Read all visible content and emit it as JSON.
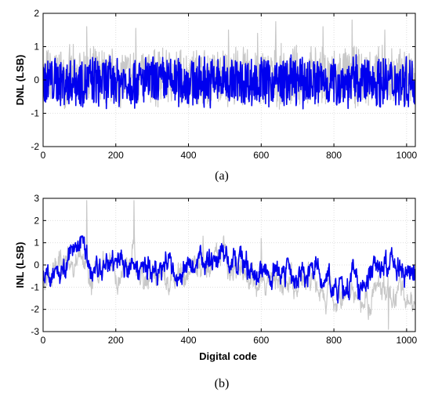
{
  "chart_data": [
    {
      "type": "line",
      "caption": "(a)",
      "title": "",
      "xlabel": "",
      "ylabel": "DNL (LSB)",
      "xlim": [
        0,
        1024
      ],
      "ylim": [
        -2,
        2
      ],
      "x_ticks": [
        0,
        200,
        400,
        600,
        800,
        1000
      ],
      "y_ticks": [
        -2,
        -1,
        0,
        1,
        2
      ],
      "grid": true,
      "legend": "none",
      "series": [
        {
          "color": "#c8c8c8",
          "n_points": 1024,
          "envelope": [
            -1.0,
            1.8
          ],
          "typical_range": [
            -0.9,
            1.1
          ],
          "peaks": [
            {
              "x": 120,
              "y": 1.6
            },
            {
              "x": 255,
              "y": 1.55
            },
            {
              "x": 510,
              "y": 1.5
            },
            {
              "x": 590,
              "y": 1.4
            },
            {
              "x": 640,
              "y": 1.75
            },
            {
              "x": 770,
              "y": 1.6
            },
            {
              "x": 850,
              "y": 1.8
            },
            {
              "x": 940,
              "y": 1.5
            }
          ]
        },
        {
          "color": "#0000ee",
          "n_points": 1024,
          "envelope": [
            -1.0,
            0.9
          ],
          "typical_range": [
            -0.9,
            0.8
          ],
          "peaks": []
        }
      ]
    },
    {
      "type": "line",
      "caption": "(b)",
      "title": "",
      "xlabel": "Digital code",
      "ylabel": "INL (LSB)",
      "xlim": [
        0,
        1024
      ],
      "ylim": [
        -3,
        3
      ],
      "x_ticks": [
        0,
        200,
        400,
        600,
        800,
        1000
      ],
      "y_ticks": [
        -3,
        -2,
        -1,
        0,
        1,
        2,
        3
      ],
      "grid": true,
      "legend": "none",
      "series": [
        {
          "color": "#c8c8c8",
          "n_points": 1024,
          "envelope": [
            -3.0,
            3.0
          ],
          "trend": [
            [
              0,
              -0.6
            ],
            [
              60,
              0.2
            ],
            [
              120,
              0.5
            ],
            [
              130,
              -0.6
            ],
            [
              250,
              0.2
            ],
            [
              260,
              -0.4
            ],
            [
              380,
              -0.5
            ],
            [
              500,
              0.3
            ],
            [
              520,
              -0.3
            ],
            [
              640,
              -1.0
            ],
            [
              760,
              -0.8
            ],
            [
              770,
              -1.2
            ],
            [
              900,
              -1.6
            ],
            [
              910,
              -0.8
            ],
            [
              1020,
              -1.4
            ]
          ],
          "peaks": [
            {
              "x": 120,
              "y": 2.9
            },
            {
              "x": 250,
              "y": 2.9
            },
            {
              "x": 440,
              "y": 1.3
            },
            {
              "x": 600,
              "y": 1.2
            },
            {
              "x": 950,
              "y": -2.9
            }
          ]
        },
        {
          "color": "#0000ee",
          "n_points": 1024,
          "envelope": [
            -1.8,
            1.3
          ],
          "trend": [
            [
              0,
              -0.7
            ],
            [
              60,
              0.3
            ],
            [
              120,
              0.7
            ],
            [
              130,
              -0.3
            ],
            [
              250,
              0.3
            ],
            [
              260,
              -0.2
            ],
            [
              380,
              -0.1
            ],
            [
              500,
              0.6
            ],
            [
              520,
              0.0
            ],
            [
              640,
              -0.3
            ],
            [
              760,
              -0.3
            ],
            [
              770,
              -0.8
            ],
            [
              900,
              -0.8
            ],
            [
              910,
              -0.3
            ],
            [
              1020,
              -0.2
            ]
          ],
          "peaks": []
        }
      ]
    }
  ]
}
